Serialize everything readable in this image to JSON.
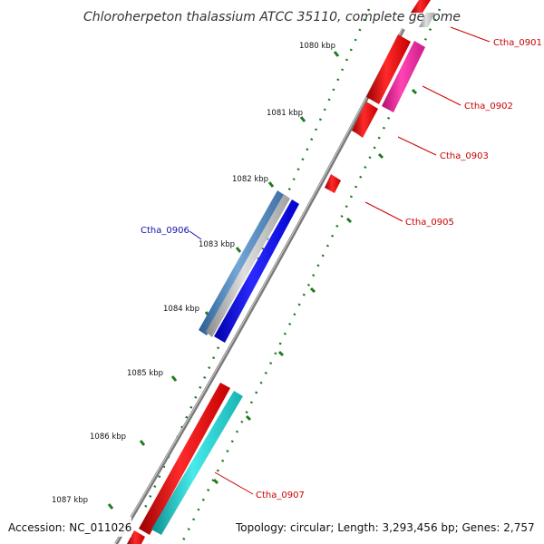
{
  "title": "Chloroherpeton thalassium ATCC 35110, complete genome",
  "footer": {
    "accession": "Accession: NC_011026",
    "stats": "Topology: circular; Length: 3,293,456 bp; Genes: 2,757"
  },
  "ticks": [
    "1080 kbp",
    "1081 kbp",
    "1082 kbp",
    "1083 kbp",
    "1084 kbp",
    "1085 kbp",
    "1086 kbp",
    "1087 kbp"
  ],
  "genes": [
    {
      "id": "Ctha_0901",
      "color": "#dd1111",
      "label_color": "#cc0000"
    },
    {
      "id": "Ctha_0902",
      "color": "#ee2299",
      "label_color": "#cc0000"
    },
    {
      "id": "Ctha_0903",
      "color": "#dd1111",
      "label_color": "#cc0000"
    },
    {
      "id": "Ctha_0905",
      "color": "#dd1111",
      "label_color": "#cc0000"
    },
    {
      "id": "Ctha_0906",
      "color": "#4f86bf",
      "label_color": "#1111aa"
    },
    {
      "id": "Ctha_0907",
      "color": "#22cccc",
      "label_color": "#cc0000"
    }
  ],
  "colors": {
    "backbone": "#7a7a7a",
    "tick_marks": "#1f7a1f",
    "forward_red": "#ee1111",
    "blue_feature": "#1111ee"
  }
}
